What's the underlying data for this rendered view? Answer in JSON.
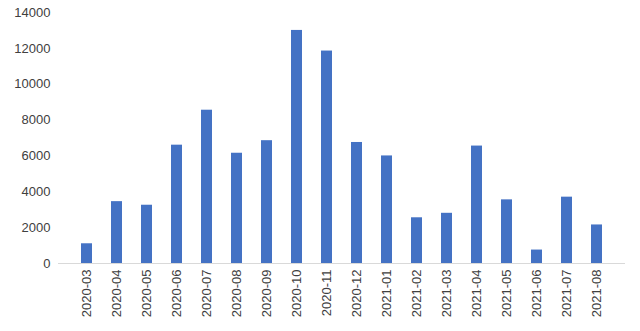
{
  "chart_data": {
    "type": "bar",
    "categories": [
      "2020-03",
      "2020-04",
      "2020-05",
      "2020-06",
      "2020-07",
      "2020-08",
      "2020-09",
      "2020-10",
      "2020-11",
      "2020-12",
      "2021-01",
      "2021-02",
      "2021-03",
      "2021-04",
      "2021-05",
      "2021-06",
      "2021-07",
      "2021-08"
    ],
    "values": [
      1100,
      3450,
      3250,
      6600,
      8550,
      6150,
      6850,
      13000,
      11850,
      6750,
      6000,
      2550,
      2800,
      6550,
      3550,
      750,
      3700,
      2150
    ],
    "color": "#4472c4",
    "ylim": [
      0,
      14000
    ],
    "yticks": [
      0,
      2000,
      4000,
      6000,
      8000,
      10000,
      12000,
      14000
    ],
    "grid": false
  }
}
